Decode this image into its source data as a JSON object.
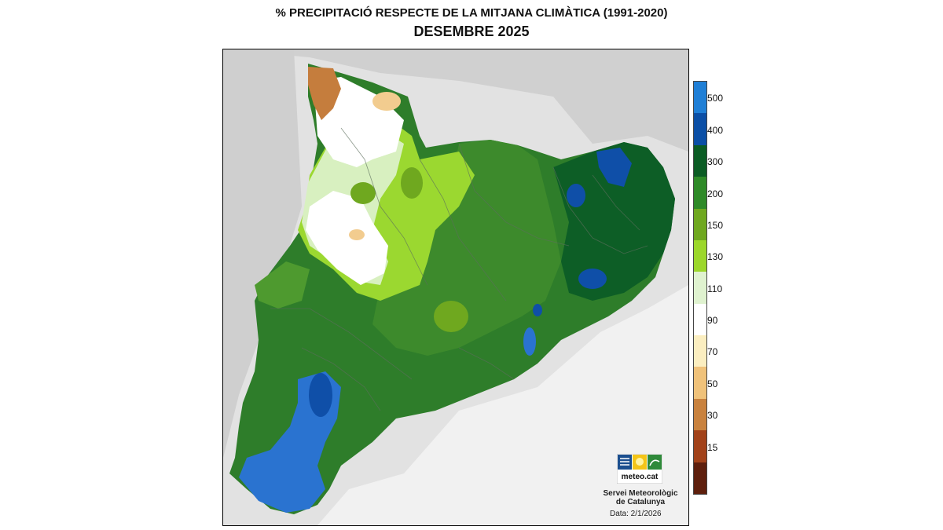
{
  "title_line1": "% PRECIPITACIÓ RESPECTE DE LA MITJANA CLIMÀTICA (1991-2020)",
  "title_line2": "DESEMBRE 2025",
  "legend": {
    "ticks": [
      "500",
      "400",
      "300",
      "200",
      "150",
      "130",
      "110",
      "90",
      "70",
      "50",
      "30",
      "15"
    ],
    "colors": [
      "#1f7fd6",
      "#0b4fa6",
      "#0b5c24",
      "#2e8a28",
      "#6fa81f",
      "#9cd72b",
      "#dff2cf",
      "#ffffff",
      "#fbeec0",
      "#f0c27a",
      "#c9823e",
      "#a2421a",
      "#5e1f0d"
    ]
  },
  "logo": {
    "text": "meteo.cat",
    "icon": "meteocat-logo"
  },
  "credit": {
    "line1": "Servei Meteorològic",
    "line2": "de Catalunya"
  },
  "date": "Data: 2/1/2026",
  "palette": {
    "land_base": "#2e7d2a",
    "dark_green": "#0d5e26",
    "mid_green": "#4e9a2f",
    "light_green": "#9bd830",
    "pale_green": "#d8f0c0",
    "white": "#ffffff",
    "tan": "#f2cc8f",
    "brown": "#c57d3d",
    "blue": "#2a73d0",
    "dark_blue": "#0f4fa8",
    "sea": "#f1f1f1",
    "relief": "#d4d4d4"
  }
}
